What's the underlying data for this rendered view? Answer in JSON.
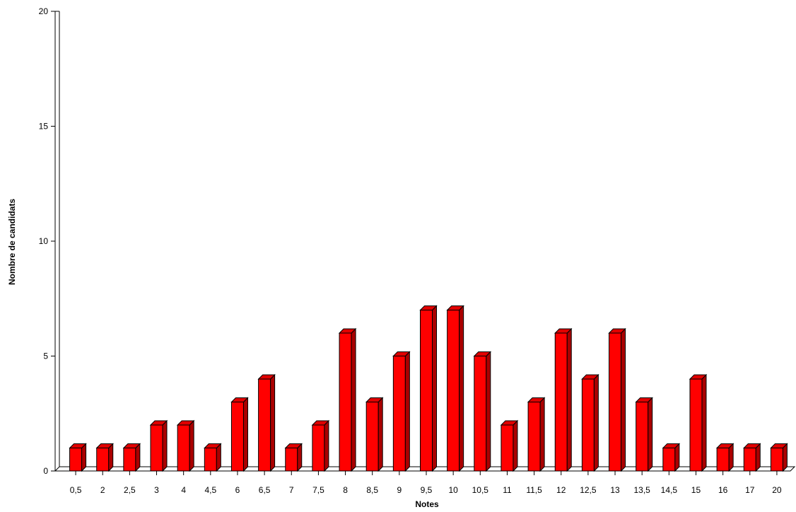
{
  "chart_data": {
    "type": "bar",
    "title": "",
    "xlabel": "Notes",
    "ylabel": "Nombre de candidats",
    "ylim": [
      0,
      20
    ],
    "yticks": [
      0,
      5,
      10,
      15,
      20
    ],
    "grid": false,
    "legend": "none",
    "bar_color": "#ff0000",
    "bar_side_color": "#aa0000",
    "bar_top_color": "#e00000",
    "categories": [
      "0,5",
      "2",
      "2,5",
      "3",
      "4",
      "4,5",
      "6",
      "6,5",
      "7",
      "7,5",
      "8",
      "8,5",
      "9",
      "9,5",
      "10",
      "10,5",
      "11",
      "11,5",
      "12",
      "12,5",
      "13",
      "13,5",
      "14,5",
      "15",
      "16",
      "17",
      "20"
    ],
    "values": [
      1,
      1,
      1,
      2,
      2,
      1,
      3,
      4,
      1,
      2,
      6,
      3,
      5,
      7,
      7,
      5,
      2,
      3,
      6,
      4,
      6,
      3,
      1,
      4,
      1,
      1,
      1
    ]
  }
}
